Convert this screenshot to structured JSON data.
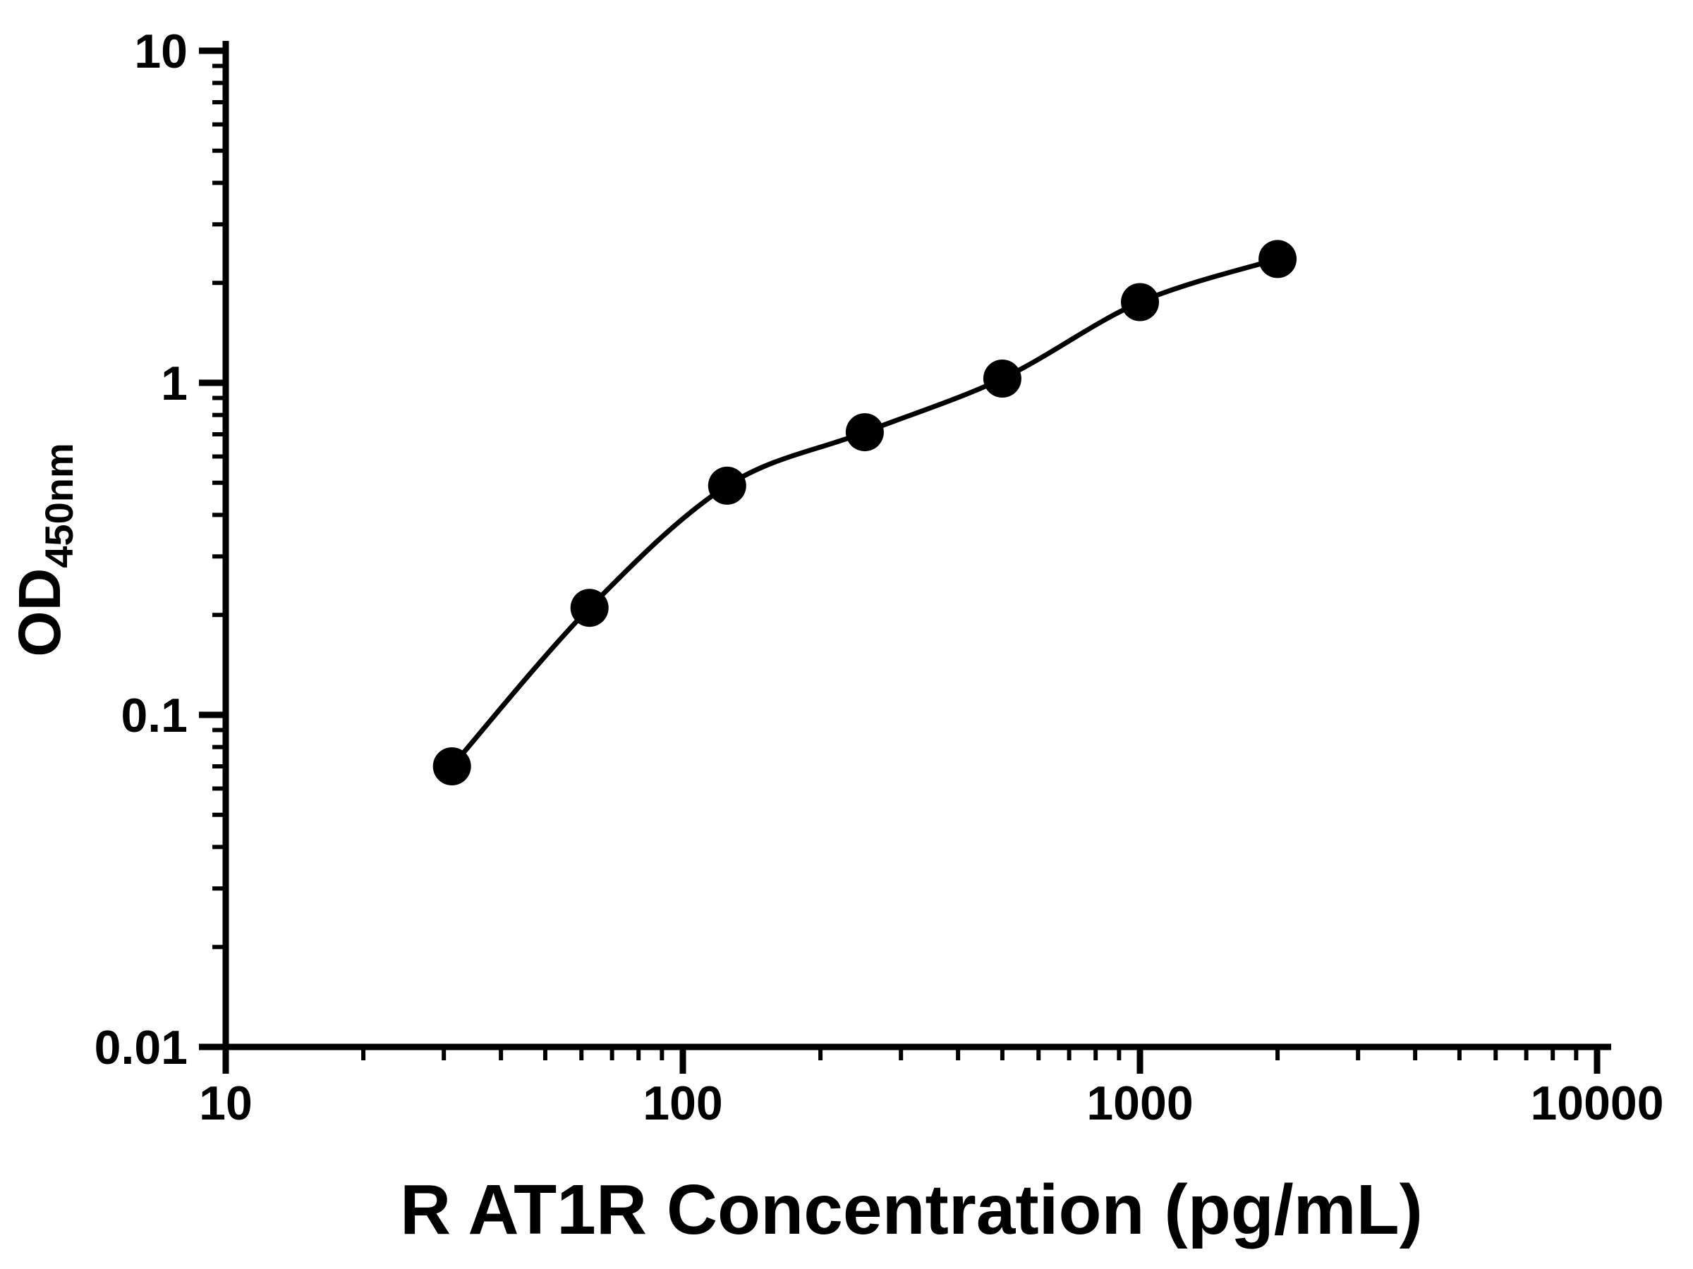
{
  "chart_data": {
    "type": "scatter",
    "title": "",
    "xlabel": "R AT1R Concentration (pg/mL)",
    "ylabel_main": "OD",
    "ylabel_sub": "450nm",
    "x_scale": "log",
    "y_scale": "log",
    "xlim": [
      10,
      10000
    ],
    "ylim": [
      0.01,
      10
    ],
    "grid": false,
    "legend": "none",
    "minor_log_ticks": true,
    "x_ticks": [
      {
        "value": 10,
        "label": "10"
      },
      {
        "value": 100,
        "label": "100"
      },
      {
        "value": 1000,
        "label": "1000"
      },
      {
        "value": 10000,
        "label": "10000"
      }
    ],
    "y_ticks": [
      {
        "value": 0.01,
        "label": "0.01"
      },
      {
        "value": 0.1,
        "label": "0.1"
      },
      {
        "value": 1,
        "label": "1"
      },
      {
        "value": 10,
        "label": "10"
      }
    ],
    "series": [
      {
        "name": "standard-curve",
        "marker": "filled-circle",
        "line": "smooth-fit",
        "x": [
          31.25,
          62.5,
          125,
          250,
          500,
          1000,
          2000
        ],
        "y": [
          0.07,
          0.21,
          0.49,
          0.71,
          1.03,
          1.75,
          2.36
        ]
      }
    ],
    "colors": {
      "axis": "#000000",
      "marker": "#000000",
      "line": "#000000",
      "background": "#ffffff",
      "text": "#000000"
    }
  }
}
